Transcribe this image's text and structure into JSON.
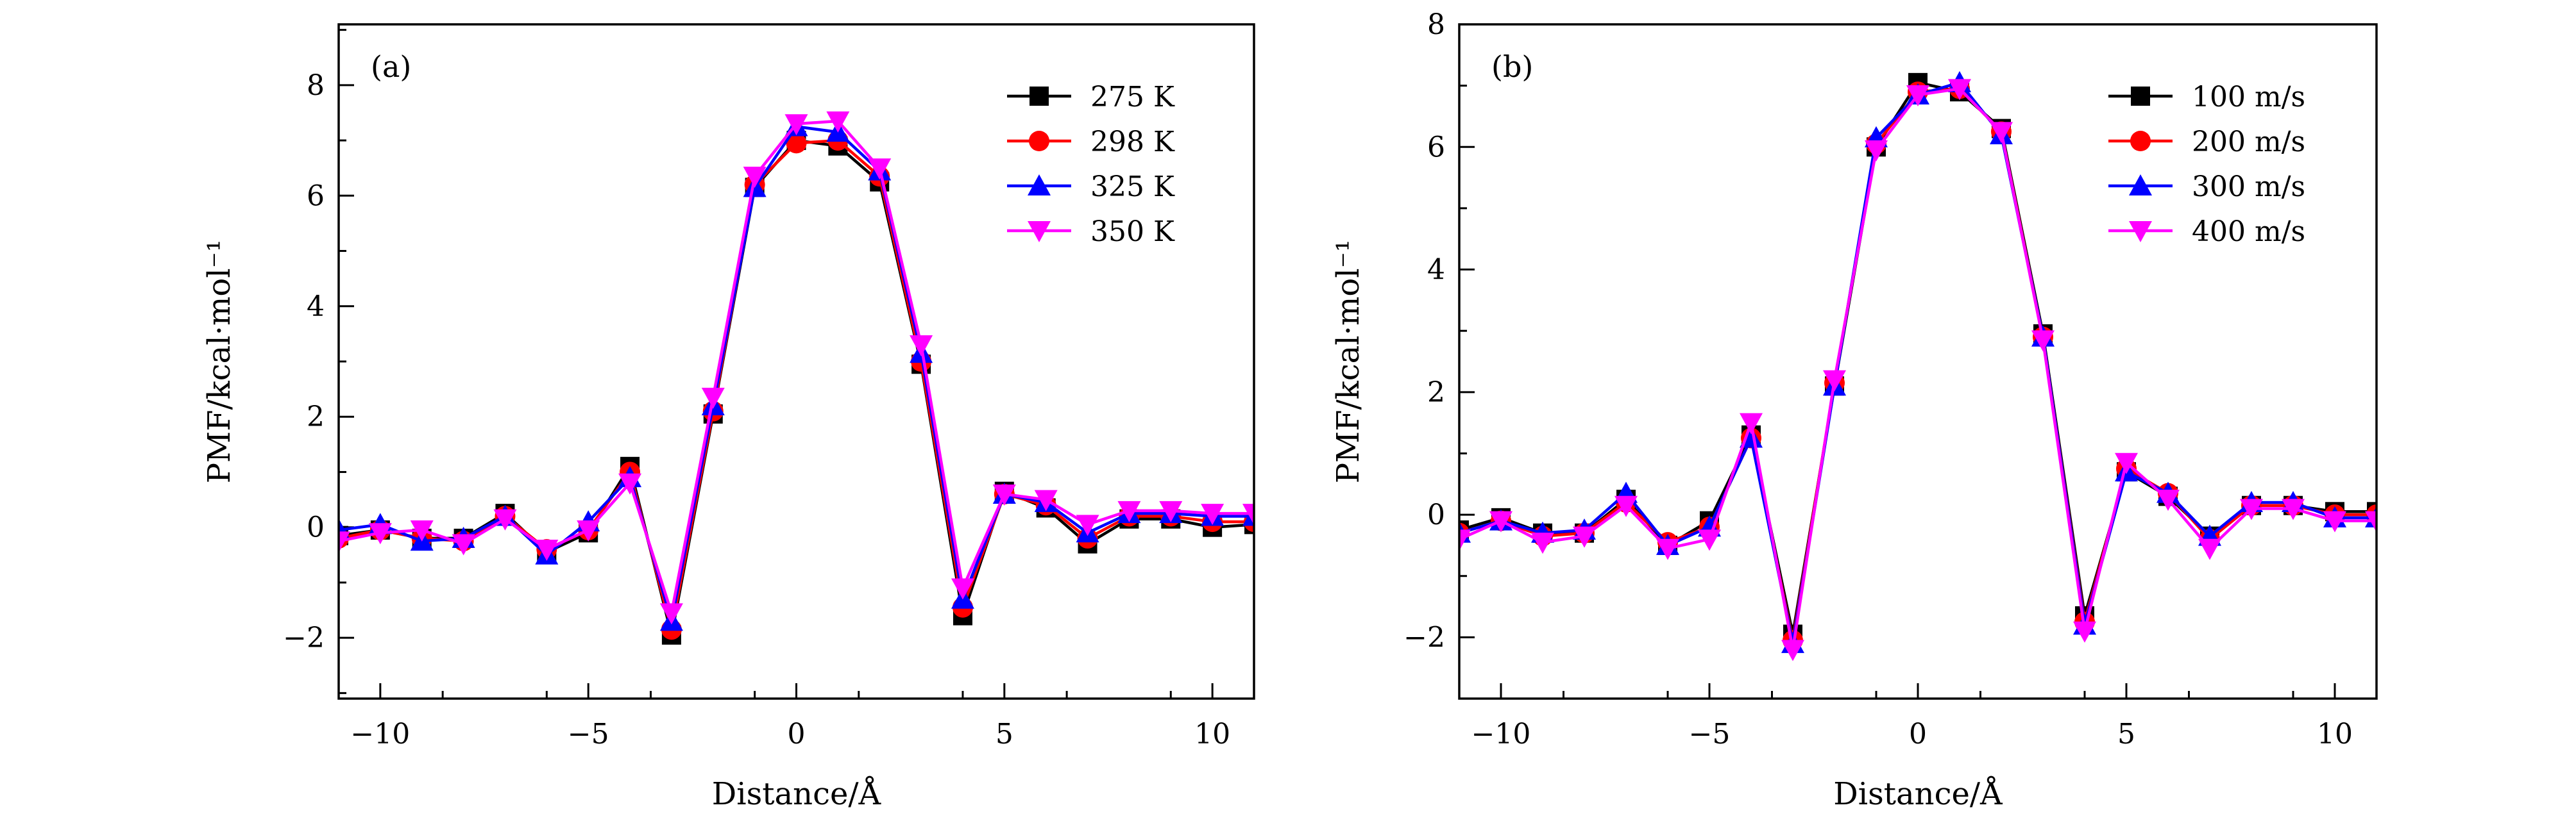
{
  "chart_data": [
    {
      "type": "line",
      "panel_label": "(a)",
      "xlabel": "Distance/Å",
      "ylabel": "PMF/kcal·mol⁻¹",
      "xlim": [
        -11,
        11
      ],
      "ylim": [
        -3.1,
        9.1
      ],
      "xticks": [
        -10,
        -5,
        0,
        5,
        10
      ],
      "yticks": [
        -2,
        0,
        2,
        4,
        6,
        8
      ],
      "x": [
        -11,
        -10,
        -9,
        -8,
        -7,
        -6,
        -5,
        -4,
        -3,
        -2,
        -1,
        0,
        1,
        2,
        3,
        4,
        5,
        6,
        7,
        8,
        9,
        10,
        11
      ],
      "legend_position": "top-right",
      "series": [
        {
          "name": "275 K",
          "color": "#000000",
          "marker": "square",
          "values": [
            -0.15,
            -0.05,
            -0.2,
            -0.2,
            0.25,
            -0.45,
            -0.1,
            1.1,
            -1.95,
            2.05,
            6.15,
            7.0,
            6.9,
            6.25,
            2.95,
            -1.6,
            0.65,
            0.35,
            -0.3,
            0.15,
            0.15,
            0.0,
            0.05
          ]
        },
        {
          "name": "298 K",
          "color": "#ff0000",
          "marker": "circle",
          "values": [
            -0.2,
            -0.05,
            -0.2,
            -0.25,
            0.2,
            -0.4,
            -0.05,
            1.0,
            -1.85,
            2.1,
            6.2,
            6.95,
            7.0,
            6.35,
            3.0,
            -1.45,
            0.6,
            0.4,
            -0.2,
            0.2,
            0.2,
            0.1,
            0.1
          ]
        },
        {
          "name": "325 K",
          "color": "#0000ff",
          "marker": "triangle-up",
          "values": [
            -0.05,
            0.05,
            -0.25,
            -0.2,
            0.2,
            -0.5,
            0.1,
            0.9,
            -1.7,
            2.2,
            6.15,
            7.25,
            7.15,
            6.45,
            3.15,
            -1.3,
            0.6,
            0.45,
            -0.1,
            0.25,
            0.25,
            0.2,
            0.2
          ]
        },
        {
          "name": "350 K",
          "color": "#ff00ff",
          "marker": "triangle-down",
          "values": [
            -0.25,
            -0.1,
            -0.05,
            -0.3,
            0.15,
            -0.4,
            -0.05,
            0.8,
            -1.55,
            2.35,
            6.35,
            7.3,
            7.35,
            6.5,
            3.3,
            -1.1,
            0.6,
            0.5,
            0.05,
            0.3,
            0.3,
            0.25,
            0.25
          ]
        }
      ]
    },
    {
      "type": "line",
      "panel_label": "(b)",
      "xlabel": "Distance/Å",
      "ylabel": "PMF/kcal·mol⁻¹",
      "xlim": [
        -11,
        11
      ],
      "ylim": [
        -3,
        8
      ],
      "xticks": [
        -10,
        -5,
        0,
        5,
        10
      ],
      "yticks": [
        -2,
        0,
        2,
        4,
        6,
        8
      ],
      "x": [
        -11,
        -10,
        -9,
        -8,
        -7,
        -6,
        -5,
        -4,
        -3,
        -2,
        -1,
        0,
        1,
        2,
        3,
        4,
        5,
        6,
        7,
        8,
        9,
        10,
        11
      ],
      "legend_position": "top-right",
      "series": [
        {
          "name": "100 m/s",
          "color": "#000000",
          "marker": "square",
          "values": [
            -0.25,
            -0.05,
            -0.3,
            -0.3,
            0.25,
            -0.5,
            -0.1,
            1.3,
            -1.95,
            2.1,
            6.0,
            7.05,
            6.9,
            6.3,
            2.95,
            -1.65,
            0.7,
            0.3,
            -0.35,
            0.15,
            0.15,
            0.05,
            0.05
          ]
        },
        {
          "name": "200 m/s",
          "color": "#ff0000",
          "marker": "circle",
          "values": [
            -0.3,
            -0.1,
            -0.35,
            -0.3,
            0.2,
            -0.45,
            -0.2,
            1.25,
            -2.05,
            2.15,
            6.05,
            6.9,
            6.95,
            6.25,
            2.9,
            -1.75,
            0.75,
            0.35,
            -0.4,
            0.15,
            0.15,
            0.0,
            0.0
          ]
        },
        {
          "name": "300 m/s",
          "color": "#0000ff",
          "marker": "triangle-up",
          "values": [
            -0.3,
            -0.1,
            -0.3,
            -0.25,
            0.35,
            -0.5,
            -0.2,
            1.25,
            -2.1,
            2.1,
            6.15,
            6.85,
            7.05,
            6.2,
            2.9,
            -1.8,
            0.7,
            0.35,
            -0.35,
            0.2,
            0.2,
            -0.05,
            -0.05
          ]
        },
        {
          "name": "400 m/s",
          "color": "#ff00ff",
          "marker": "triangle-down",
          "values": [
            -0.4,
            -0.1,
            -0.45,
            -0.35,
            0.15,
            -0.55,
            -0.4,
            1.5,
            -2.2,
            2.2,
            5.95,
            6.85,
            6.95,
            6.25,
            2.85,
            -1.9,
            0.85,
            0.25,
            -0.55,
            0.1,
            0.1,
            -0.1,
            -0.1
          ]
        }
      ]
    }
  ]
}
